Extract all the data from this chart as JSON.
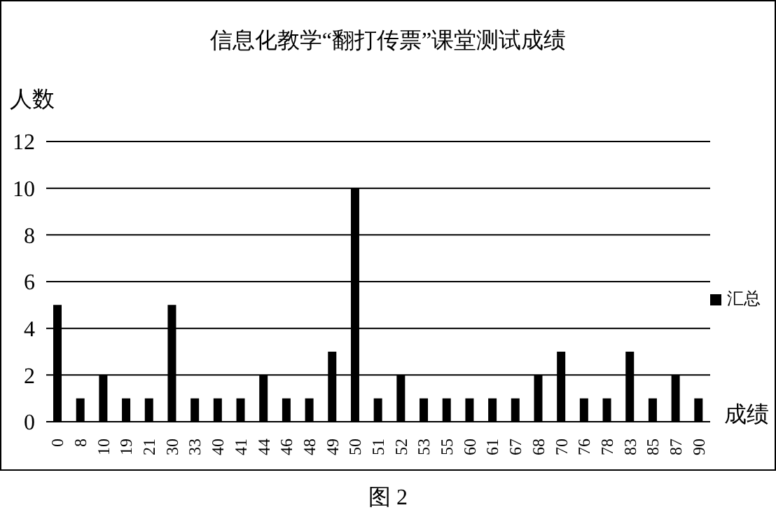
{
  "chart_data": {
    "type": "bar",
    "title": "信息化教学“翻打传票”课堂测试成绩",
    "ylabel": "人数",
    "xlabel": "成绩",
    "categories": [
      "0",
      "8",
      "10",
      "19",
      "21",
      "30",
      "33",
      "40",
      "41",
      "44",
      "46",
      "48",
      "49",
      "50",
      "51",
      "52",
      "53",
      "55",
      "60",
      "61",
      "67",
      "68",
      "70",
      "76",
      "78",
      "83",
      "85",
      "87",
      "90"
    ],
    "series": [
      {
        "name": "汇总",
        "color": "#000000",
        "values": [
          5,
          1,
          2,
          1,
          1,
          5,
          1,
          1,
          1,
          2,
          1,
          1,
          3,
          10,
          1,
          2,
          1,
          1,
          1,
          1,
          1,
          2,
          3,
          1,
          1,
          3,
          1,
          2,
          1
        ]
      }
    ],
    "ylim": [
      0,
      12
    ],
    "yticks": [
      0,
      2,
      4,
      6,
      8,
      10,
      12
    ],
    "grid": "y",
    "legend": "right",
    "annotations": [
      "图 2"
    ]
  }
}
